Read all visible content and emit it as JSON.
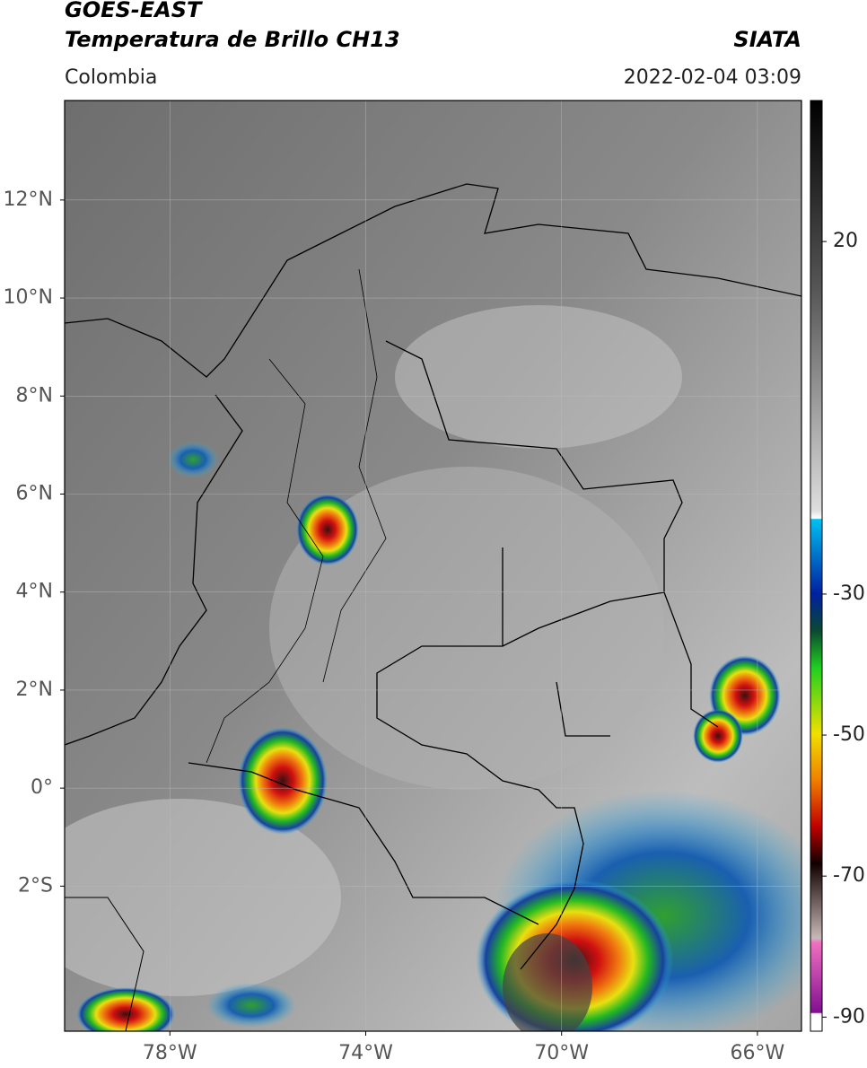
{
  "header": {
    "title_line1": "GOES-EAST",
    "title_line2": "Temperatura de Brillo CH13",
    "source": "SIATA",
    "region": "Colombia",
    "datetime": "2022-02-04 03:09"
  },
  "map": {
    "xlim": [
      -80.15,
      -65.1
    ],
    "ylim": [
      -4.96,
      14.03
    ],
    "xticks": [
      {
        "value": -78,
        "label": "78°W"
      },
      {
        "value": -74,
        "label": "74°W"
      },
      {
        "value": -70,
        "label": "70°W"
      },
      {
        "value": -66,
        "label": "66°W"
      }
    ],
    "yticks": [
      {
        "value": 12,
        "label": "12°N"
      },
      {
        "value": 10,
        "label": "10°N"
      },
      {
        "value": 8,
        "label": "8°N"
      },
      {
        "value": 6,
        "label": "6°N"
      },
      {
        "value": 4,
        "label": "4°N"
      },
      {
        "value": 2,
        "label": "2°N"
      },
      {
        "value": 0,
        "label": "0°"
      },
      {
        "value": -2,
        "label": "2°S"
      }
    ],
    "grid": true
  },
  "colorbar": {
    "lim": [
      -92,
      40
    ],
    "ticks": [
      20,
      -30,
      -50,
      -70,
      -90
    ]
  }
}
